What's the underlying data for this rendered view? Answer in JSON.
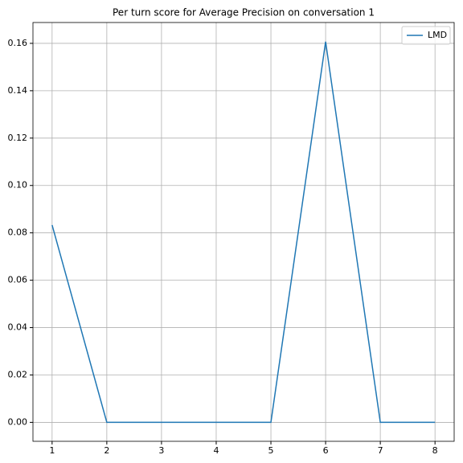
{
  "chart_data": {
    "type": "line",
    "title": "Per turn score for Average Precision on conversation 1",
    "x": [
      1,
      2,
      3,
      4,
      5,
      6,
      7,
      8
    ],
    "series": [
      {
        "name": "LMD",
        "color": "#1f77b4",
        "values": [
          0.0833,
          0,
          0,
          0,
          0,
          0.1607,
          0,
          0
        ]
      }
    ],
    "xlim": [
      0.65,
      8.35
    ],
    "xticks": [
      1,
      2,
      3,
      4,
      5,
      6,
      7,
      8
    ],
    "ylim": [
      -0.008,
      0.1688
    ],
    "yticks": [
      {
        "value": 0,
        "label": "0.00"
      },
      {
        "value": 0.02,
        "label": "0.02"
      },
      {
        "value": 0.04,
        "label": "0.04"
      },
      {
        "value": 0.06,
        "label": "0.06"
      },
      {
        "value": 0.08,
        "label": "0.08"
      },
      {
        "value": 0.1,
        "label": "0.10"
      },
      {
        "value": 0.12,
        "label": "0.12"
      },
      {
        "value": 0.14,
        "label": "0.14"
      },
      {
        "value": 0.16,
        "label": "0.16"
      }
    ],
    "grid": true,
    "legend": "upper right"
  }
}
